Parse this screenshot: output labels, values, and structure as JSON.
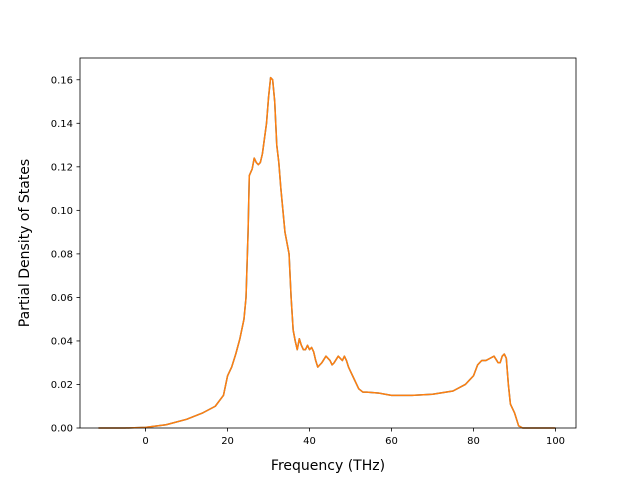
{
  "chart_data": {
    "type": "line",
    "title": "",
    "xlabel": "Frequency (THz)",
    "ylabel": "Partial Density of States",
    "xlim": [
      -16,
      105
    ],
    "ylim": [
      0,
      0.17
    ],
    "xticks": [
      0,
      20,
      40,
      60,
      80,
      100
    ],
    "xtick_labels": [
      "0",
      "20",
      "40",
      "60",
      "80",
      "100"
    ],
    "yticks": [
      0.0,
      0.02,
      0.04,
      0.06,
      0.08,
      0.1,
      0.12,
      0.14,
      0.16
    ],
    "ytick_labels": [
      "0.00",
      "0.02",
      "0.04",
      "0.06",
      "0.08",
      "0.10",
      "0.12",
      "0.14",
      "0.16"
    ],
    "grid": false,
    "legend": "none",
    "series": [
      {
        "color": "#1f77b4",
        "x": [
          -11.5,
          -5,
          0,
          5,
          10,
          14,
          17,
          19,
          20,
          21,
          22,
          23,
          24,
          24.5,
          25,
          25.3,
          26,
          26.5,
          27,
          27.5,
          28,
          28.5,
          29,
          29.5,
          30,
          30.5,
          31,
          31.5,
          32,
          32.5,
          33,
          34,
          35,
          35.5,
          36,
          36.5,
          37,
          37.5,
          38,
          38.5,
          39,
          39.5,
          40,
          40.5,
          41,
          41.5,
          42,
          42.5,
          43,
          44,
          45,
          45.5,
          46,
          47,
          47.5,
          48,
          48.5,
          49,
          49.5,
          50,
          51,
          52,
          53,
          54,
          57,
          60,
          65,
          70,
          75,
          78,
          80,
          81,
          82,
          83,
          84,
          85,
          86,
          86.5,
          87,
          87.5,
          88,
          88.5,
          89,
          90,
          91,
          92,
          95,
          100
        ],
        "y": [
          0.0,
          0.0,
          0.0003,
          0.0015,
          0.004,
          0.007,
          0.01,
          0.015,
          0.024,
          0.028,
          0.034,
          0.041,
          0.05,
          0.06,
          0.09,
          0.116,
          0.119,
          0.124,
          0.122,
          0.121,
          0.122,
          0.126,
          0.133,
          0.14,
          0.152,
          0.161,
          0.16,
          0.15,
          0.13,
          0.122,
          0.11,
          0.09,
          0.08,
          0.06,
          0.045,
          0.04,
          0.036,
          0.041,
          0.038,
          0.036,
          0.036,
          0.038,
          0.036,
          0.037,
          0.035,
          0.031,
          0.028,
          0.029,
          0.03,
          0.033,
          0.031,
          0.029,
          0.03,
          0.033,
          0.032,
          0.031,
          0.033,
          0.031,
          0.028,
          0.026,
          0.022,
          0.018,
          0.0165,
          0.0165,
          0.016,
          0.015,
          0.015,
          0.0155,
          0.017,
          0.02,
          0.024,
          0.029,
          0.031,
          0.031,
          0.032,
          0.033,
          0.03,
          0.03,
          0.033,
          0.034,
          0.032,
          0.02,
          0.011,
          0.007,
          0.001,
          0.0,
          0.0,
          0.0
        ]
      },
      {
        "color": "#ff7f0e",
        "x": [
          -11.5,
          -5,
          0,
          5,
          10,
          14,
          17,
          19,
          20,
          21,
          22,
          23,
          24,
          24.5,
          25,
          25.3,
          26,
          26.5,
          27,
          27.5,
          28,
          28.5,
          29,
          29.5,
          30,
          30.5,
          31,
          31.5,
          32,
          32.5,
          33,
          34,
          35,
          35.5,
          36,
          36.5,
          37,
          37.5,
          38,
          38.5,
          39,
          39.5,
          40,
          40.5,
          41,
          41.5,
          42,
          42.5,
          43,
          44,
          45,
          45.5,
          46,
          47,
          47.5,
          48,
          48.5,
          49,
          49.5,
          50,
          51,
          52,
          53,
          54,
          57,
          60,
          65,
          70,
          75,
          78,
          80,
          81,
          82,
          83,
          84,
          85,
          86,
          86.5,
          87,
          87.5,
          88,
          88.5,
          89,
          90,
          91,
          92,
          95,
          100
        ],
        "y": [
          0.0,
          0.0,
          0.0003,
          0.0015,
          0.004,
          0.007,
          0.01,
          0.015,
          0.024,
          0.028,
          0.034,
          0.041,
          0.05,
          0.06,
          0.09,
          0.116,
          0.119,
          0.124,
          0.122,
          0.121,
          0.122,
          0.126,
          0.133,
          0.14,
          0.152,
          0.161,
          0.16,
          0.15,
          0.13,
          0.122,
          0.11,
          0.09,
          0.08,
          0.06,
          0.045,
          0.04,
          0.036,
          0.041,
          0.038,
          0.036,
          0.036,
          0.038,
          0.036,
          0.037,
          0.035,
          0.031,
          0.028,
          0.029,
          0.03,
          0.033,
          0.031,
          0.029,
          0.03,
          0.033,
          0.032,
          0.031,
          0.033,
          0.031,
          0.028,
          0.026,
          0.022,
          0.018,
          0.0165,
          0.0165,
          0.016,
          0.015,
          0.015,
          0.0155,
          0.017,
          0.02,
          0.024,
          0.029,
          0.031,
          0.031,
          0.032,
          0.033,
          0.03,
          0.03,
          0.033,
          0.034,
          0.032,
          0.02,
          0.011,
          0.007,
          0.001,
          0.0,
          0.0,
          0.0
        ]
      }
    ]
  }
}
